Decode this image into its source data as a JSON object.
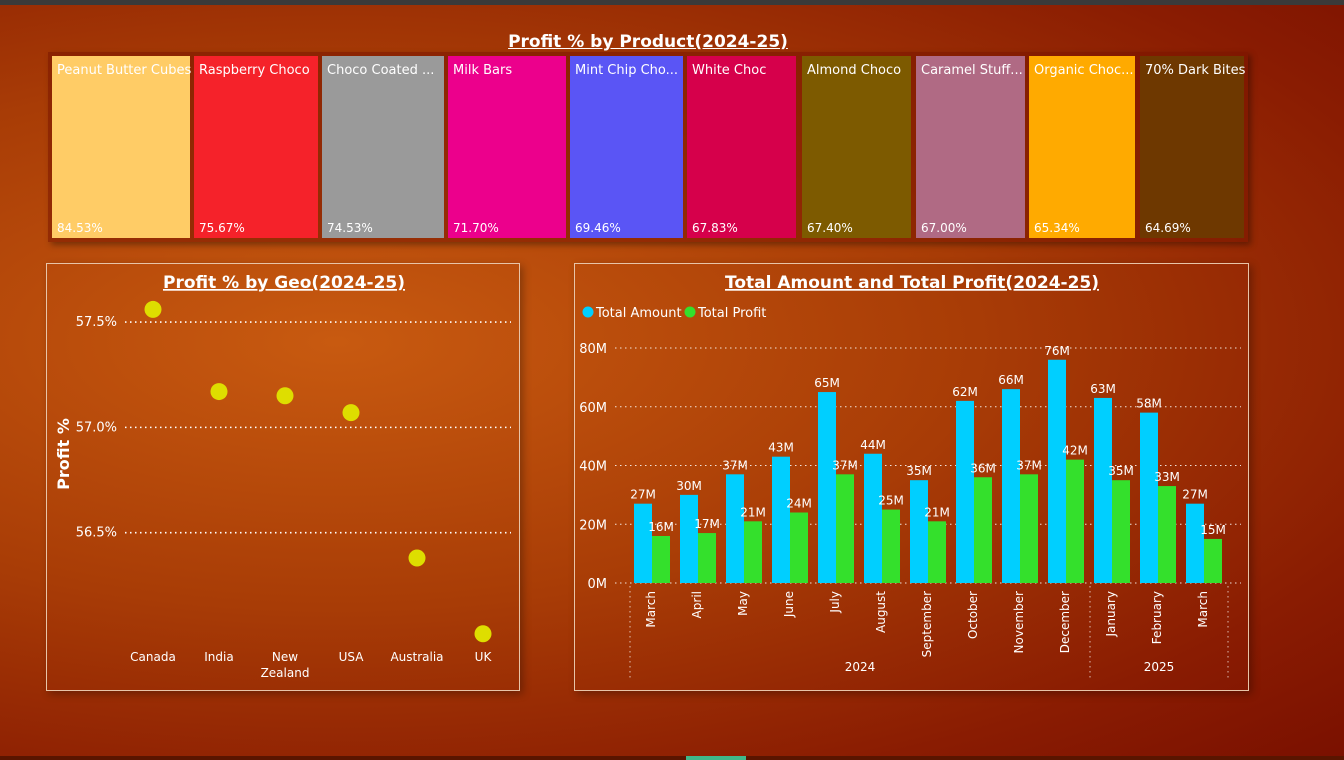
{
  "colors": {
    "amount": "#00cfff",
    "profit": "#34e02c",
    "geo_dot": "#dede00"
  },
  "treemap": {
    "title": "Profit % by Product(2024-25)",
    "items": [
      {
        "label": "Peanut Butter Cubes",
        "value": "84.53%",
        "color": "#ffcc66"
      },
      {
        "label": "Raspberry Choco",
        "value": "75.67%",
        "color": "#f5222a"
      },
      {
        "label": "Choco Coated ...",
        "value": "74.53%",
        "color": "#9a9a9a"
      },
      {
        "label": "Milk Bars",
        "value": "71.70%",
        "color": "#ec008c"
      },
      {
        "label": "Mint Chip Cho...",
        "value": "69.46%",
        "color": "#5a55f5"
      },
      {
        "label": "White Choc",
        "value": "67.83%",
        "color": "#d6004b"
      },
      {
        "label": "Almond Choco",
        "value": "67.40%",
        "color": "#7d5a00"
      },
      {
        "label": "Caramel Stuff...",
        "value": "67.00%",
        "color": "#b06a84"
      },
      {
        "label": "Organic Choc...",
        "value": "65.34%",
        "color": "#ffaa00"
      },
      {
        "label": "70% Dark Bites",
        "value": "64.69%",
        "color": "#6e3800"
      }
    ]
  },
  "chart_data": [
    {
      "type": "scatter",
      "title": "Profit % by Geo(2024-25)",
      "ylabel": "Profit %",
      "xlabel": "",
      "categories": [
        "Canada",
        "India",
        "New Zealand",
        "USA",
        "Australia",
        "UK"
      ],
      "category_lines": [
        [
          "Canada"
        ],
        [
          "India"
        ],
        [
          "New",
          "Zealand"
        ],
        [
          "USA"
        ],
        [
          "Australia"
        ],
        [
          "UK"
        ]
      ],
      "values": [
        57.56,
        57.17,
        57.15,
        57.07,
        56.38,
        56.02
      ],
      "y_ticks": [
        57.5,
        57.0,
        56.5
      ],
      "y_tick_labels": [
        "57.5%",
        "57.0%",
        "56.5%"
      ],
      "ylim": [
        56.0,
        57.6
      ],
      "grid": true
    },
    {
      "type": "bar",
      "title": "Total Amount and Total Profit(2024-25)",
      "legend": [
        "Total Amount",
        "Total Profit"
      ],
      "legend_position": "top-left",
      "categories": [
        "March",
        "April",
        "May",
        "June",
        "July",
        "August",
        "September",
        "October",
        "November",
        "December",
        "January",
        "February",
        "March"
      ],
      "groups": [
        {
          "label": "2024",
          "count": 10
        },
        {
          "label": "2025",
          "count": 3
        }
      ],
      "series": [
        {
          "name": "Total Amount",
          "values": [
            27,
            30,
            37,
            43,
            65,
            44,
            35,
            62,
            66,
            76,
            63,
            58,
            27
          ],
          "labels": [
            "27M",
            "30M",
            "37M",
            "43M",
            "65M",
            "44M",
            "35M",
            "62M",
            "66M",
            "76M",
            "63M",
            "58M",
            "27M"
          ]
        },
        {
          "name": "Total Profit",
          "values": [
            16,
            17,
            21,
            24,
            37,
            25,
            21,
            36,
            37,
            42,
            35,
            33,
            15
          ],
          "labels": [
            "16M",
            "17M",
            "21M",
            "24M",
            "37M",
            "25M",
            "21M",
            "36M",
            "37M",
            "42M",
            "35M",
            "33M",
            "15M"
          ]
        }
      ],
      "y_ticks": [
        0,
        20,
        40,
        60,
        80
      ],
      "y_tick_labels": [
        "0M",
        "20M",
        "40M",
        "60M",
        "80M"
      ],
      "ylim": [
        0,
        80
      ],
      "grid": true
    }
  ]
}
